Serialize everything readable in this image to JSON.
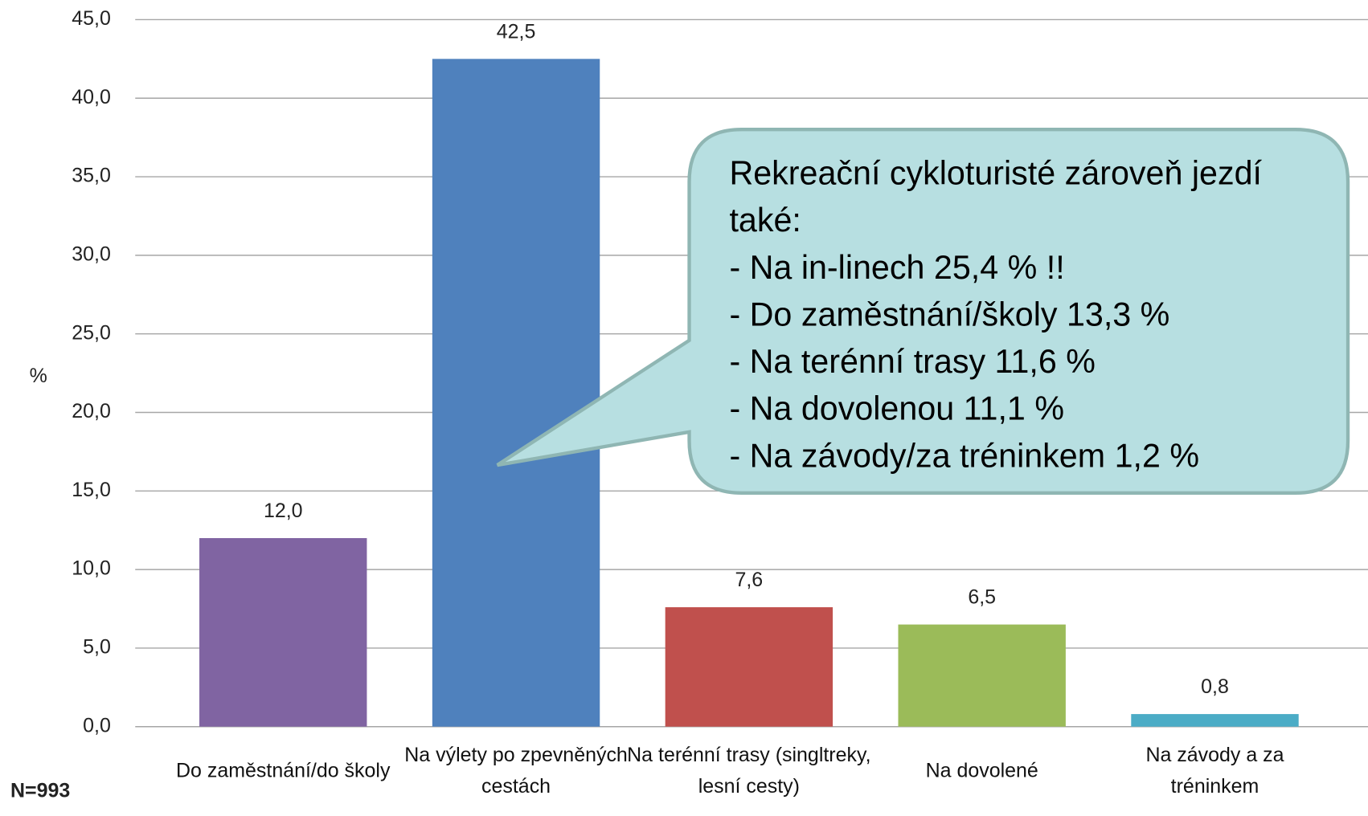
{
  "chart_data": {
    "type": "bar",
    "categories": [
      "Do zaměstnání/do školy",
      "Na výlety po zpevněných cestách",
      "Na terénní trasy (singltreky, lesní cesty)",
      "Na dovolené",
      "Na závody a za tréninkem"
    ],
    "values": [
      12.0,
      42.5,
      7.6,
      6.5,
      0.8
    ],
    "value_labels": [
      "12,0",
      "42,5",
      "7,6",
      "6,5",
      "0,8"
    ],
    "colors": [
      "#8064a2",
      "#4f81bd",
      "#c0504d",
      "#9bbb59",
      "#4bacc6"
    ],
    "y_label": "%",
    "note": "N=993",
    "ylim": [
      0,
      45
    ],
    "yticks": [
      {
        "value": 0,
        "label": "0,0"
      },
      {
        "value": 5,
        "label": "5,0"
      },
      {
        "value": 10,
        "label": "10,0"
      },
      {
        "value": 15,
        "label": "15,0"
      },
      {
        "value": 20,
        "label": "20,0"
      },
      {
        "value": 25,
        "label": "25,0"
      },
      {
        "value": 30,
        "label": "30,0"
      },
      {
        "value": 35,
        "label": "35,0"
      },
      {
        "value": 40,
        "label": "40,0"
      },
      {
        "value": 45,
        "label": "45,0"
      }
    ],
    "grid": true,
    "callout": {
      "title": "Rekreační cykloturisté zároveň jezdí také:",
      "items": [
        "- Na in-linech 25,4 % !!",
        "- Do zaměstnání/školy 13,3 %",
        "- Na terénní trasy 11,6 %",
        "- Na dovolenou 11,1 %",
        "- Na závody/za tréninkem 1,2 %"
      ]
    }
  }
}
